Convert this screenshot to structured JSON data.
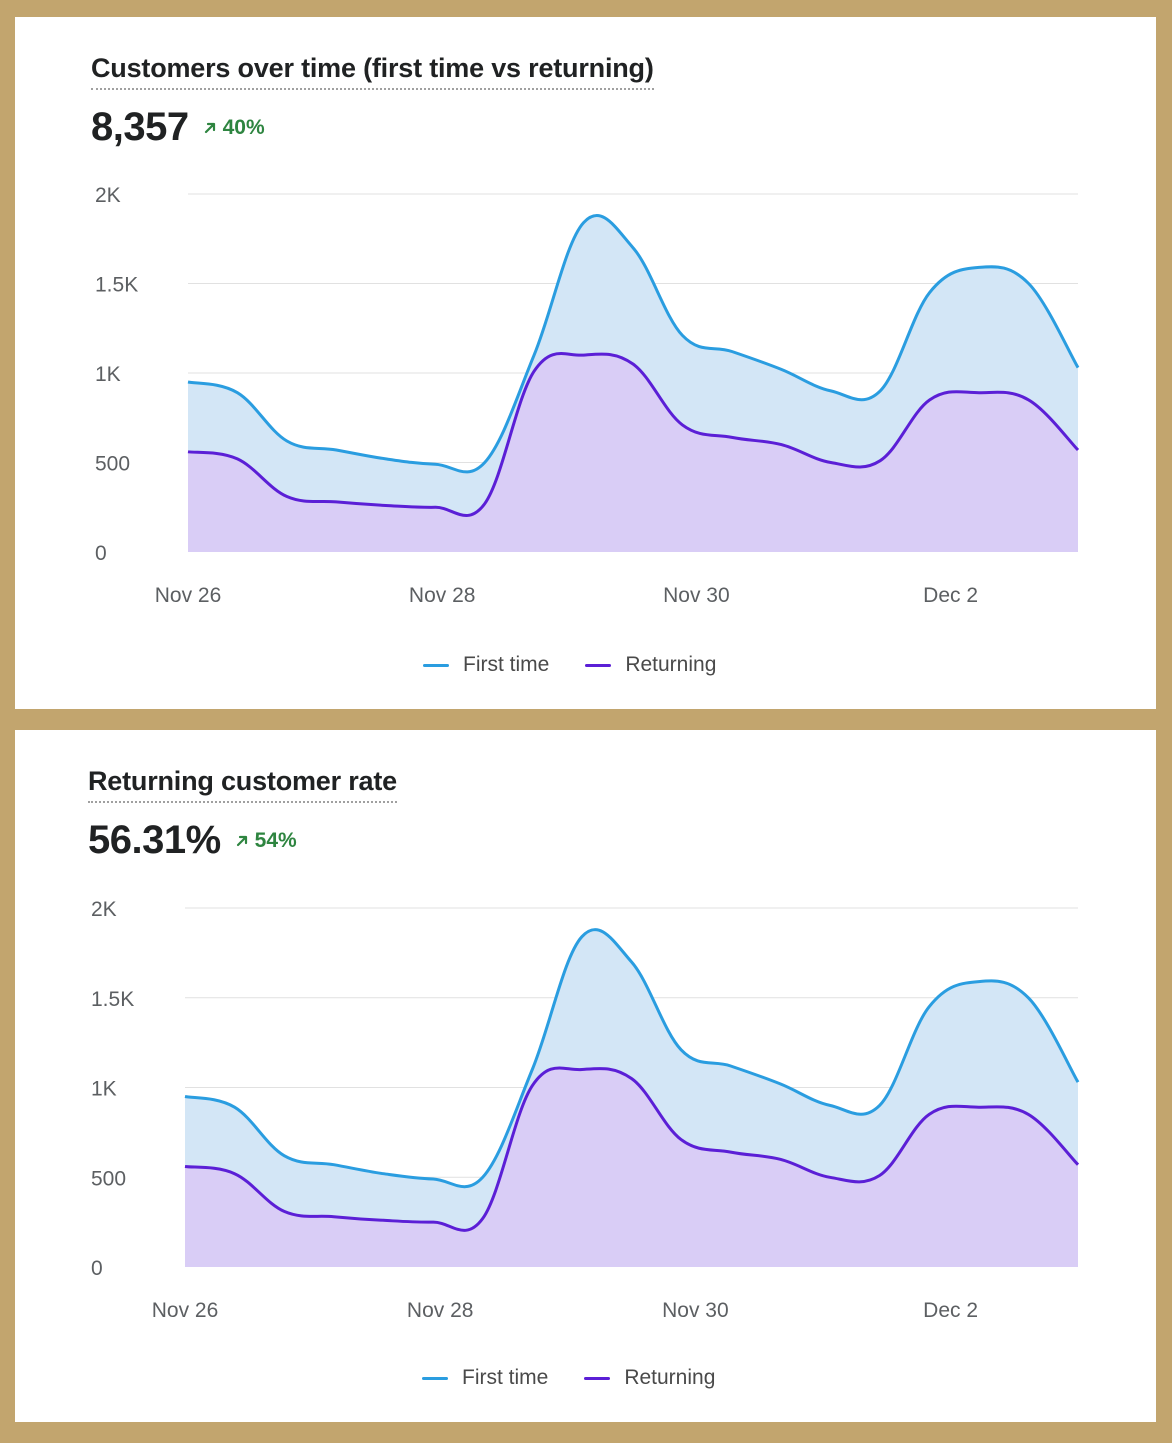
{
  "colors": {
    "positive": "#2e8540",
    "first_time_line": "#2a9de0",
    "first_time_fill": "#d3e6f6",
    "returning_line": "#5b1fd6",
    "returning_fill": "#d9cdf6",
    "grid": "#e1e1e1",
    "axis_text": "#5c5f62"
  },
  "cards": [
    {
      "title": "Customers over time (first time vs returning)",
      "metric": "8,357",
      "change": "40%",
      "change_icon": "arrow-up-right-icon",
      "legend": [
        "First time",
        "Returning"
      ]
    },
    {
      "title": "Returning customer rate",
      "metric": "56.31%",
      "change": "54%",
      "change_icon": "arrow-up-right-icon",
      "legend": [
        "First time",
        "Returning"
      ]
    }
  ],
  "chart_data": [
    {
      "type": "area",
      "x": [
        0,
        0.25,
        0.5,
        0.75,
        1,
        1.25,
        1.5,
        1.75,
        2,
        2.25,
        2.5,
        2.75,
        3,
        3.25,
        3.5,
        3.75,
        4,
        4.25,
        4.5
      ],
      "x_ticks": [
        0,
        2,
        4,
        6
      ],
      "x_tick_labels": [
        "Nov 26",
        "Nov 28",
        "Nov 30",
        "Dec 2"
      ],
      "ylim": [
        0,
        2000
      ],
      "y_ticks": [
        0,
        500,
        1000,
        1500,
        2000
      ],
      "y_tick_labels": [
        "0",
        "500",
        "1K",
        "1.5K",
        "2K"
      ],
      "grid": true,
      "legend_position": "bottom",
      "series": [
        {
          "name": "First time",
          "values": [
            950,
            890,
            620,
            570,
            520,
            490,
            500,
            1100,
            1840,
            1700,
            1210,
            1120,
            1020,
            900,
            900,
            1450,
            1590,
            1500,
            1030
          ]
        },
        {
          "name": "Returning",
          "values": [
            560,
            520,
            310,
            280,
            260,
            250,
            270,
            1010,
            1100,
            1050,
            710,
            640,
            600,
            500,
            510,
            850,
            890,
            850,
            570
          ]
        }
      ]
    },
    {
      "type": "area",
      "x": [
        0,
        0.25,
        0.5,
        0.75,
        1,
        1.25,
        1.5,
        1.75,
        2,
        2.25,
        2.5,
        2.75,
        3,
        3.25,
        3.5,
        3.75,
        4,
        4.25,
        4.5
      ],
      "x_ticks": [
        0,
        2,
        4,
        6
      ],
      "x_tick_labels": [
        "Nov 26",
        "Nov 28",
        "Nov 30",
        "Dec 2"
      ],
      "ylim": [
        0,
        2000
      ],
      "y_ticks": [
        0,
        500,
        1000,
        1500,
        2000
      ],
      "y_tick_labels": [
        "0",
        "500",
        "1K",
        "1.5K",
        "2K"
      ],
      "grid": true,
      "legend_position": "bottom",
      "series": [
        {
          "name": "First time",
          "values": [
            950,
            890,
            620,
            570,
            520,
            490,
            500,
            1100,
            1840,
            1700,
            1210,
            1120,
            1020,
            900,
            900,
            1450,
            1590,
            1500,
            1030
          ]
        },
        {
          "name": "Returning",
          "values": [
            560,
            520,
            310,
            280,
            260,
            250,
            270,
            1010,
            1100,
            1050,
            710,
            640,
            600,
            500,
            510,
            850,
            890,
            850,
            570
          ]
        }
      ]
    }
  ]
}
